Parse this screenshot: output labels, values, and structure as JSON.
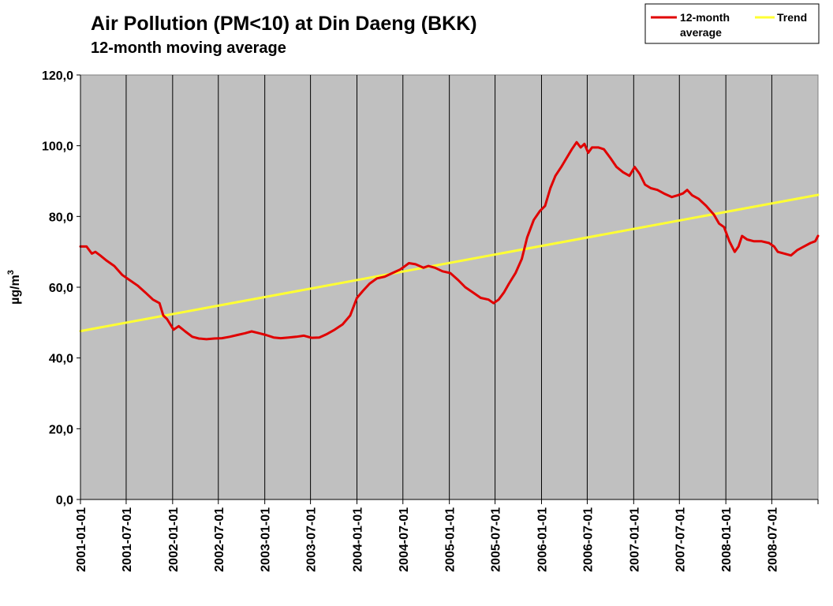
{
  "chart_data": {
    "type": "line",
    "title": "Air Pollution (PM<10) at Din Daeng (BKK)",
    "subtitle": "12-month moving average",
    "ylabel": "µg/m",
    "ylabel_superscript": "3",
    "ylim": [
      0,
      120
    ],
    "y_ticks": [
      "0,0",
      "20,0",
      "40,0",
      "60,0",
      "80,0",
      "100,0",
      "120,0"
    ],
    "x_ticks": [
      "2001-01-01",
      "2001-07-01",
      "2002-01-01",
      "2002-07-01",
      "2003-01-01",
      "2003-07-01",
      "2004-01-01",
      "2004-07-01",
      "2005-01-01",
      "2005-07-01",
      "2006-01-01",
      "2006-07-01",
      "2007-01-01",
      "2007-07-01",
      "2008-01-01",
      "2008-07-01"
    ],
    "x_range": [
      "2001-01-01",
      "2008-12-31"
    ],
    "plot_background": "#c0c0c0",
    "grid": "vertical",
    "legend_position": "top-right",
    "series": [
      {
        "name": "12-month average",
        "color": "#e00000",
        "points": [
          [
            "2001-01-01",
            71.5
          ],
          [
            "2001-01-25",
            71.5
          ],
          [
            "2001-02-15",
            69.5
          ],
          [
            "2001-03-01",
            70.0
          ],
          [
            "2001-03-20",
            69.0
          ],
          [
            "2001-04-15",
            67.5
          ],
          [
            "2001-05-15",
            66.0
          ],
          [
            "2001-06-15",
            63.5
          ],
          [
            "2001-07-15",
            62.0
          ],
          [
            "2001-08-15",
            60.5
          ],
          [
            "2001-09-15",
            58.5
          ],
          [
            "2001-10-15",
            56.5
          ],
          [
            "2001-11-10",
            55.5
          ],
          [
            "2001-11-25",
            52.0
          ],
          [
            "2001-12-10",
            51.0
          ],
          [
            "2002-01-05",
            48.0
          ],
          [
            "2002-01-25",
            49.0
          ],
          [
            "2002-02-20",
            47.5
          ],
          [
            "2002-03-20",
            46.0
          ],
          [
            "2002-04-15",
            45.5
          ],
          [
            "2002-05-15",
            45.3
          ],
          [
            "2002-06-15",
            45.5
          ],
          [
            "2002-07-15",
            45.6
          ],
          [
            "2002-08-15",
            46.0
          ],
          [
            "2002-09-15",
            46.5
          ],
          [
            "2002-10-15",
            47.0
          ],
          [
            "2002-11-10",
            47.5
          ],
          [
            "2002-12-10",
            47.0
          ],
          [
            "2003-01-05",
            46.5
          ],
          [
            "2003-02-05",
            45.8
          ],
          [
            "2003-03-05",
            45.6
          ],
          [
            "2003-04-05",
            45.8
          ],
          [
            "2003-05-05",
            46.0
          ],
          [
            "2003-06-05",
            46.3
          ],
          [
            "2003-07-05",
            45.7
          ],
          [
            "2003-08-05",
            45.8
          ],
          [
            "2003-09-05",
            46.8
          ],
          [
            "2003-10-05",
            48.0
          ],
          [
            "2003-11-05",
            49.5
          ],
          [
            "2003-12-05",
            52.0
          ],
          [
            "2004-01-01",
            57.0
          ],
          [
            "2004-01-25",
            59.0
          ],
          [
            "2004-02-20",
            61.0
          ],
          [
            "2004-03-20",
            62.5
          ],
          [
            "2004-04-20",
            63.0
          ],
          [
            "2004-05-20",
            64.0
          ],
          [
            "2004-06-20",
            65.0
          ],
          [
            "2004-07-10",
            66.0
          ],
          [
            "2004-07-25",
            66.8
          ],
          [
            "2004-08-20",
            66.5
          ],
          [
            "2004-09-20",
            65.5
          ],
          [
            "2004-10-10",
            66.0
          ],
          [
            "2004-11-05",
            65.5
          ],
          [
            "2004-12-05",
            64.5
          ],
          [
            "2005-01-05",
            64.0
          ],
          [
            "2005-02-05",
            62.0
          ],
          [
            "2005-03-05",
            60.0
          ],
          [
            "2005-04-05",
            58.5
          ],
          [
            "2005-05-05",
            57.0
          ],
          [
            "2005-06-05",
            56.5
          ],
          [
            "2005-06-25",
            55.5
          ],
          [
            "2005-07-15",
            56.5
          ],
          [
            "2005-08-05",
            58.5
          ],
          [
            "2005-08-25",
            61.0
          ],
          [
            "2005-09-20",
            64.0
          ],
          [
            "2005-10-15",
            68.0
          ],
          [
            "2005-11-05",
            74.0
          ],
          [
            "2005-12-01",
            79.0
          ],
          [
            "2005-12-25",
            81.5
          ],
          [
            "2006-01-15",
            83.0
          ],
          [
            "2006-02-05",
            88.0
          ],
          [
            "2006-02-25",
            91.5
          ],
          [
            "2006-03-20",
            94.0
          ],
          [
            "2006-04-10",
            96.5
          ],
          [
            "2006-05-01",
            99.0
          ],
          [
            "2006-05-20",
            101.0
          ],
          [
            "2006-06-05",
            99.5
          ],
          [
            "2006-06-20",
            100.5
          ],
          [
            "2006-07-05",
            98.0
          ],
          [
            "2006-07-20",
            99.5
          ],
          [
            "2006-08-15",
            99.5
          ],
          [
            "2006-09-05",
            99.0
          ],
          [
            "2006-10-01",
            96.5
          ],
          [
            "2006-10-25",
            94.0
          ],
          [
            "2006-11-20",
            92.5
          ],
          [
            "2006-12-15",
            91.5
          ],
          [
            "2007-01-05",
            94.0
          ],
          [
            "2007-01-25",
            92.0
          ],
          [
            "2007-02-15",
            89.0
          ],
          [
            "2007-03-10",
            88.0
          ],
          [
            "2007-04-05",
            87.5
          ],
          [
            "2007-05-01",
            86.5
          ],
          [
            "2007-06-01",
            85.5
          ],
          [
            "2007-06-25",
            86.0
          ],
          [
            "2007-07-15",
            86.5
          ],
          [
            "2007-08-01",
            87.5
          ],
          [
            "2007-08-20",
            86.0
          ],
          [
            "2007-09-15",
            85.0
          ],
          [
            "2007-10-15",
            83.0
          ],
          [
            "2007-11-15",
            80.5
          ],
          [
            "2007-12-05",
            78.0
          ],
          [
            "2007-12-25",
            77.0
          ],
          [
            "2008-01-15",
            73.0
          ],
          [
            "2008-02-05",
            70.0
          ],
          [
            "2008-02-20",
            71.5
          ],
          [
            "2008-03-05",
            74.5
          ],
          [
            "2008-03-25",
            73.5
          ],
          [
            "2008-04-20",
            73.0
          ],
          [
            "2008-05-20",
            73.0
          ],
          [
            "2008-06-20",
            72.5
          ],
          [
            "2008-07-10",
            71.5
          ],
          [
            "2008-07-25",
            70.0
          ],
          [
            "2008-08-20",
            69.5
          ],
          [
            "2008-09-15",
            69.0
          ],
          [
            "2008-10-10",
            70.5
          ],
          [
            "2008-11-05",
            71.5
          ],
          [
            "2008-12-01",
            72.5
          ],
          [
            "2008-12-20",
            73.0
          ],
          [
            "2008-12-31",
            74.5
          ]
        ]
      },
      {
        "name": "Trend",
        "color": "#ffff33",
        "points": [
          [
            "2001-01-01",
            47.6
          ],
          [
            "2008-12-31",
            86.1
          ]
        ]
      }
    ]
  },
  "legend": {
    "items": [
      {
        "label_line1": "12-month",
        "label_line2": "average",
        "color": "#e00000"
      },
      {
        "label_line1": "Trend",
        "label_line2": "",
        "color": "#ffff33"
      }
    ]
  }
}
